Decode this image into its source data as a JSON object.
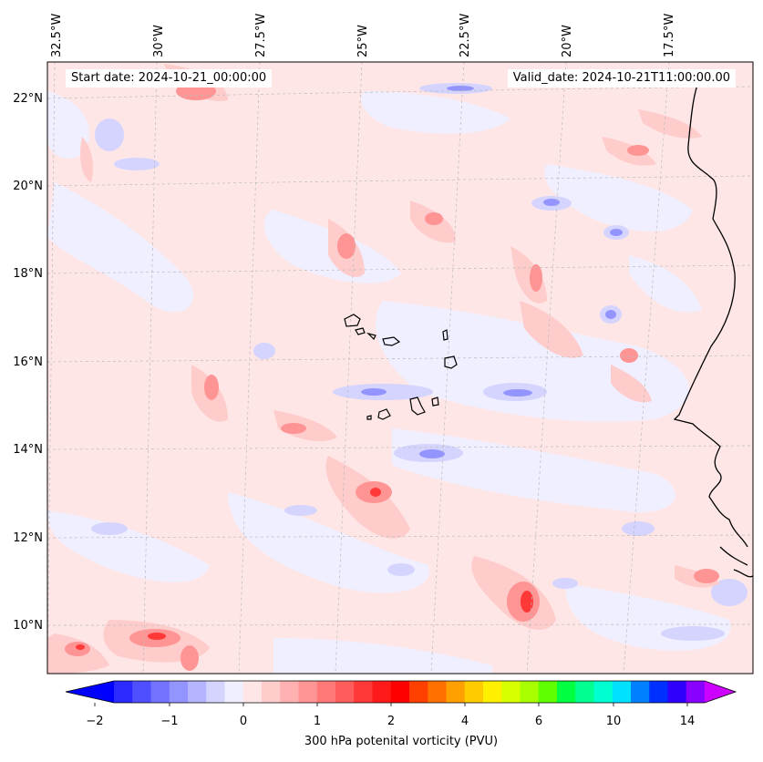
{
  "map": {
    "start_date": "Start date: 2024-10-21_00:00:00",
    "valid_date": "Valid_date: 2024-10-21T11:00:00.00",
    "lon_labels": [
      "32.5°W",
      "30°W",
      "27.5°W",
      "25°W",
      "22.5°W",
      "20°W",
      "17.5°W"
    ],
    "lat_labels": [
      "22°N",
      "20°N",
      "18°N",
      "16°N",
      "14°N",
      "12°N",
      "10°N"
    ],
    "colorbar": {
      "title": "300 hPa potenital vorticity (PVU)",
      "tick_labels": [
        "−2",
        "−1",
        "0",
        "1",
        "2",
        "4",
        "6",
        "10",
        "14"
      ],
      "colors": [
        "#0000ff",
        "#2b2bff",
        "#4f4fff",
        "#7272ff",
        "#9494ff",
        "#b4b4ff",
        "#d4d4ff",
        "#efefff",
        "#ffe6e6",
        "#ffcccc",
        "#ffb0b0",
        "#ff9494",
        "#ff7878",
        "#ff5c5c",
        "#ff3838",
        "#ff1a1a",
        "#ff0000",
        "#ff4000",
        "#ff7000",
        "#ffa000",
        "#ffcc00",
        "#fff000",
        "#d8ff00",
        "#a8ff00",
        "#60ff00",
        "#00ff40",
        "#00ff90",
        "#00ffd0",
        "#00e0ff",
        "#0080ff",
        "#0030ff",
        "#3000ff",
        "#8800ff",
        "#cc00ff"
      ]
    }
  }
}
